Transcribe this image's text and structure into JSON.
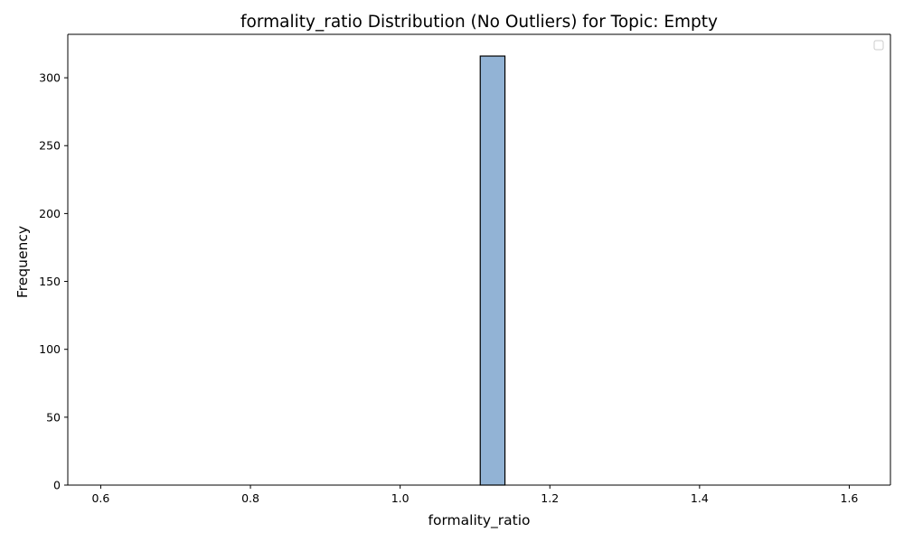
{
  "chart_data": {
    "type": "bar",
    "title": "formality_ratio Distribution (No Outliers) for Topic: Empty",
    "xlabel": "formality_ratio",
    "ylabel": "Frequency",
    "xlim": [
      0.556,
      1.655
    ],
    "ylim": [
      0,
      332
    ],
    "x_ticks": [
      0.6,
      0.8,
      1.0,
      1.2,
      1.4,
      1.6
    ],
    "x_tick_labels": [
      "0.6",
      "0.8",
      "1.0",
      "1.2",
      "1.4",
      "1.6"
    ],
    "y_ticks": [
      0,
      50,
      100,
      150,
      200,
      250,
      300
    ],
    "y_tick_labels": [
      "0",
      "50",
      "100",
      "150",
      "200",
      "250",
      "300"
    ],
    "bins": [
      {
        "x_start": 1.107,
        "x_end": 1.14,
        "value": 316
      }
    ],
    "bar_color": "#92b3d5",
    "bar_edge_color": "#000000",
    "grid": false,
    "legend": {
      "placement": "top-right",
      "entries": []
    }
  }
}
